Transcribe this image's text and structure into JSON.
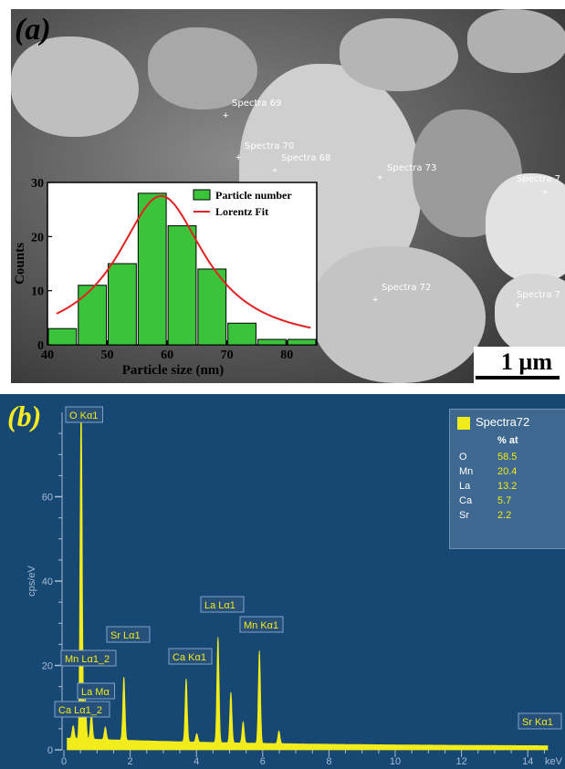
{
  "panel_a": {
    "label": "(a)",
    "scale_bar": "1 µm",
    "spectra_points": [
      {
        "name": "Spectra 69"
      },
      {
        "name": "Spectra 70"
      },
      {
        "name": "Spectra 68"
      },
      {
        "name": "Spectra 73"
      },
      {
        "name": "Spectra 7"
      },
      {
        "name": "Spectra 72"
      },
      {
        "name": "Spectra 7"
      }
    ]
  },
  "panel_b": {
    "label": "(b)",
    "legend": {
      "name": "Spectra72",
      "column_header": "% at",
      "rows": [
        {
          "element": "O",
          "value": "58.5"
        },
        {
          "element": "Mn",
          "value": "20.4"
        },
        {
          "element": "La",
          "value": "13.2"
        },
        {
          "element": "Ca",
          "value": "5.7"
        },
        {
          "element": "Sr",
          "value": "2.2"
        }
      ]
    }
  },
  "chart_data": [
    {
      "type": "bar",
      "subtype": "histogram",
      "x": [
        42.5,
        47.5,
        52.5,
        57.5,
        62.5,
        67.5,
        72.5,
        77.5,
        82.5
      ],
      "values": [
        3,
        11,
        15,
        28,
        22,
        14,
        4,
        1,
        1
      ],
      "xlabel": "Particle size (nm)",
      "ylabel": "Counts",
      "xlim": [
        40,
        85
      ],
      "ylim": [
        0,
        30
      ],
      "xticks": [
        40,
        50,
        60,
        70,
        80
      ],
      "yticks": [
        0,
        10,
        20,
        30
      ],
      "legend": [
        "Particle number",
        "Lorentz Fit"
      ],
      "fit": {
        "type": "lorentz",
        "center": 59,
        "amplitude": 27.5,
        "hwhm": 9
      },
      "colors": {
        "bars": "#3bc43b",
        "fit": "#e22222"
      }
    },
    {
      "type": "line",
      "subtype": "spectrum",
      "xlabel": "keV",
      "ylabel": "cps/eV",
      "xlim": [
        0,
        14.6
      ],
      "ylim": [
        0,
        80
      ],
      "xticks": [
        0,
        2,
        4,
        6,
        8,
        10,
        12,
        14
      ],
      "yticks": [
        0,
        20,
        40,
        60
      ],
      "baseline": 2,
      "peaks": [
        {
          "x": 0.28,
          "height": 3
        },
        {
          "x": 0.52,
          "height": 80
        },
        {
          "x": 0.64,
          "height": 10
        },
        {
          "x": 0.83,
          "height": 6
        },
        {
          "x": 1.25,
          "height": 3
        },
        {
          "x": 1.81,
          "height": 15
        },
        {
          "x": 3.69,
          "height": 15
        },
        {
          "x": 4.01,
          "height": 2
        },
        {
          "x": 4.65,
          "height": 25
        },
        {
          "x": 5.04,
          "height": 12
        },
        {
          "x": 5.41,
          "height": 5
        },
        {
          "x": 5.9,
          "height": 22
        },
        {
          "x": 6.49,
          "height": 3
        }
      ],
      "peak_labels": [
        {
          "text": "O Kα1",
          "x": 0.52
        },
        {
          "text": "Mn Lα1_2",
          "x": 0.64
        },
        {
          "text": "La Mα",
          "x": 0.83
        },
        {
          "text": "Ca Lα1_2",
          "x": 0.34
        },
        {
          "text": "Sr Lα1",
          "x": 1.81
        },
        {
          "text": "Ca Kα1",
          "x": 3.69
        },
        {
          "text": "La Lα1",
          "x": 4.65
        },
        {
          "text": "Mn Kα1",
          "x": 5.9
        },
        {
          "text": "Sr Kα1",
          "x": 14.16
        }
      ],
      "color": "#f2ec1a"
    }
  ]
}
